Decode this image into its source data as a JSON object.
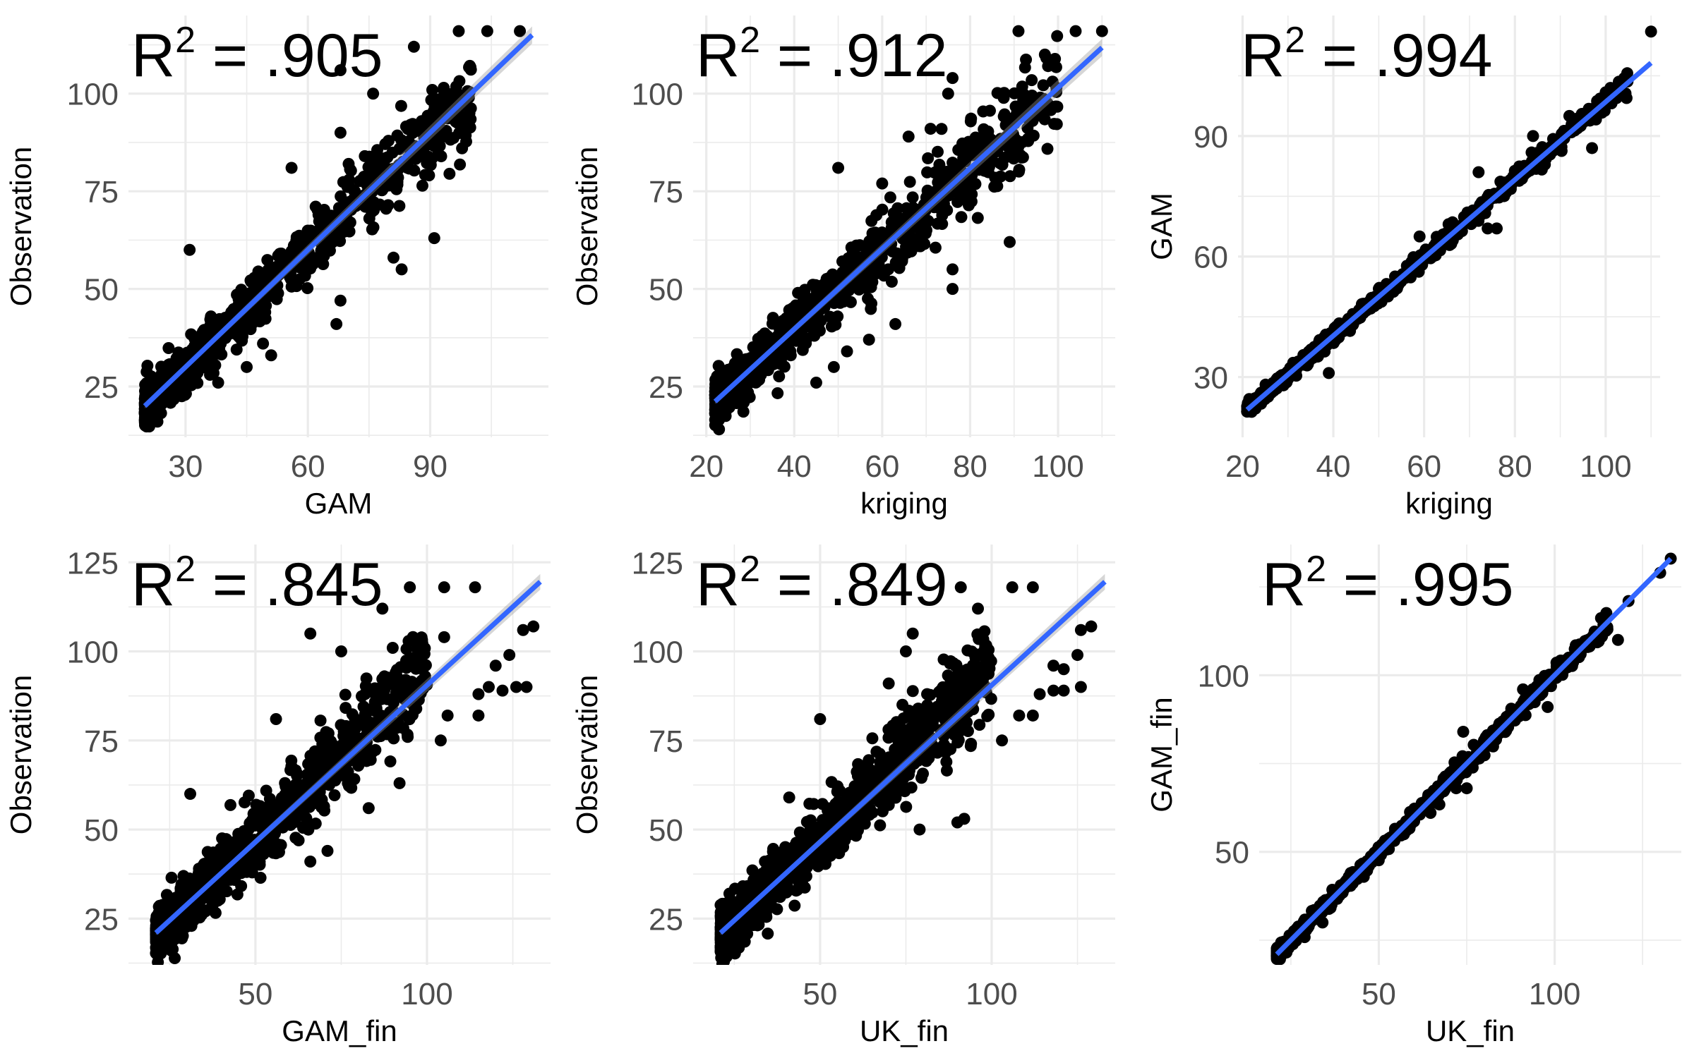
{
  "chart_data": [
    {
      "type": "scatter",
      "panel": "top-left",
      "annotation": {
        "prefix": "R",
        "sup": "2",
        "value": " = .905"
      },
      "xlabel": "GAM",
      "ylabel": "Observation",
      "xlim": [
        16,
        119
      ],
      "ylim": [
        12,
        120
      ],
      "xticks": [
        30,
        60,
        90
      ],
      "xtick_labels": [
        "30",
        "60",
        "90"
      ],
      "xminor": [
        45,
        75,
        105
      ],
      "yticks": [
        25,
        50,
        75,
        100
      ],
      "ytick_labels": [
        "25",
        "50",
        "75",
        "100"
      ],
      "yminor": [
        12.5,
        37.5,
        62.5,
        87.5,
        112.5
      ],
      "grid": true,
      "fit": {
        "slope": 1.0,
        "intercept": 0.0,
        "x_range": [
          20,
          115
        ],
        "color": "#3366FF",
        "se_band": true
      },
      "cloud": {
        "n": 900,
        "x_range": [
          20,
          100
        ],
        "slope": 1.0,
        "intercept": 0.0,
        "noise": 4.5,
        "seed": 11
      },
      "outliers": [
        [
          97,
          116
        ],
        [
          104,
          116
        ],
        [
          112,
          116
        ],
        [
          86,
          112
        ],
        [
          68,
          106
        ],
        [
          76,
          100
        ],
        [
          56,
          81
        ],
        [
          68,
          90
        ],
        [
          70,
          82
        ],
        [
          31,
          60
        ],
        [
          91,
          63
        ],
        [
          81,
          58
        ],
        [
          83,
          55
        ],
        [
          68,
          47
        ],
        [
          67,
          41
        ],
        [
          49,
          36
        ],
        [
          51,
          33
        ],
        [
          45,
          30
        ],
        [
          36,
          28
        ],
        [
          38,
          26
        ]
      ]
    },
    {
      "type": "scatter",
      "panel": "top-middle",
      "annotation": {
        "prefix": "R",
        "sup": "2",
        "value": " = .912"
      },
      "xlabel": "kriging",
      "ylabel": "Observation",
      "xlim": [
        17,
        113
      ],
      "ylim": [
        12,
        120
      ],
      "xticks": [
        20,
        40,
        60,
        80,
        100
      ],
      "xtick_labels": [
        "20",
        "40",
        "60",
        "80",
        "100"
      ],
      "xminor": [
        30,
        50,
        70,
        90,
        110
      ],
      "yticks": [
        25,
        50,
        75,
        100
      ],
      "ytick_labels": [
        "25",
        "50",
        "75",
        "100"
      ],
      "yminor": [
        12.5,
        37.5,
        62.5,
        87.5,
        112.5
      ],
      "grid": true,
      "fit": {
        "slope": 1.03,
        "intercept": -1.5,
        "x_range": [
          22,
          110
        ],
        "color": "#3366FF",
        "se_band": true
      },
      "cloud": {
        "n": 900,
        "x_range": [
          22,
          100
        ],
        "slope": 1.03,
        "intercept": -1.5,
        "noise": 4.8,
        "seed": 23
      },
      "outliers": [
        [
          91,
          116
        ],
        [
          104,
          116
        ],
        [
          110,
          116
        ],
        [
          97,
          110
        ],
        [
          76,
          104
        ],
        [
          75,
          100
        ],
        [
          66,
          89
        ],
        [
          71,
          91
        ],
        [
          50,
          81
        ],
        [
          60,
          77
        ],
        [
          89,
          62
        ],
        [
          76,
          55
        ],
        [
          76,
          50
        ],
        [
          63,
          41
        ],
        [
          57,
          37
        ],
        [
          52,
          34
        ],
        [
          49,
          30
        ],
        [
          45,
          26
        ]
      ]
    },
    {
      "type": "scatter",
      "panel": "top-right",
      "annotation": {
        "prefix": "R",
        "sup": "2",
        "value": " = .994"
      },
      "xlabel": "kriging",
      "ylabel": "GAM",
      "xlim": [
        19,
        112
      ],
      "ylim": [
        15,
        120
      ],
      "xticks": [
        20,
        40,
        60,
        80,
        100
      ],
      "xtick_labels": [
        "20",
        "40",
        "60",
        "80",
        "100"
      ],
      "xminor": [
        30,
        50,
        70,
        90,
        110
      ],
      "yticks": [
        30,
        60,
        90
      ],
      "ytick_labels": [
        "30",
        "60",
        "90"
      ],
      "yminor": [
        45,
        75,
        105
      ],
      "grid": true,
      "fit": {
        "slope": 0.97,
        "intercept": 1.5,
        "x_range": [
          21,
          110
        ],
        "color": "#3366FF",
        "se_band": false
      },
      "cloud": {
        "n": 700,
        "x_range": [
          21,
          105
        ],
        "slope": 0.97,
        "intercept": 1.5,
        "noise": 1.2,
        "seed": 37
      },
      "outliers": [
        [
          110,
          116
        ],
        [
          97,
          87
        ],
        [
          76,
          67
        ],
        [
          74,
          67
        ],
        [
          59,
          65
        ],
        [
          72,
          81
        ],
        [
          39,
          31
        ],
        [
          84,
          90
        ],
        [
          92,
          95
        ]
      ]
    },
    {
      "type": "scatter",
      "panel": "bottom-left",
      "annotation": {
        "prefix": "R",
        "sup": "2",
        "value": " = .845"
      },
      "xlabel": "GAM_fin",
      "ylabel": "Observation",
      "xlim": [
        13,
        136
      ],
      "ylim": [
        12,
        130
      ],
      "xticks": [
        50,
        100
      ],
      "xtick_labels": [
        "50",
        "100"
      ],
      "xminor": [
        25,
        75,
        125
      ],
      "yticks": [
        25,
        50,
        75,
        100,
        125
      ],
      "ytick_labels": [
        "25",
        "50",
        "75",
        "100",
        "125"
      ],
      "yminor": [
        12.5,
        37.5,
        62.5,
        87.5,
        112.5
      ],
      "grid": true,
      "fit": {
        "slope": 0.88,
        "intercept": 2.5,
        "x_range": [
          21,
          133
        ],
        "color": "#3366FF",
        "se_band": true
      },
      "cloud": {
        "n": 1000,
        "x_range": [
          21,
          100
        ],
        "slope": 0.95,
        "intercept": 0.0,
        "noise": 5.5,
        "seed": 51
      },
      "outliers": [
        [
          95,
          118
        ],
        [
          105,
          118
        ],
        [
          114,
          118
        ],
        [
          87,
          112
        ],
        [
          66,
          105
        ],
        [
          75,
          100
        ],
        [
          90,
          101
        ],
        [
          105,
          104
        ],
        [
          128,
          106
        ],
        [
          131,
          107
        ],
        [
          124,
          99
        ],
        [
          120,
          96
        ],
        [
          118,
          90
        ],
        [
          115,
          88
        ],
        [
          122,
          89
        ],
        [
          126,
          90
        ],
        [
          129,
          90
        ],
        [
          104,
          75
        ],
        [
          106,
          82
        ],
        [
          115,
          82
        ],
        [
          31,
          60
        ],
        [
          56,
          81
        ],
        [
          83,
          56
        ],
        [
          92,
          63
        ],
        [
          71,
          44
        ],
        [
          66,
          41
        ]
      ]
    },
    {
      "type": "scatter",
      "panel": "bottom-middle",
      "annotation": {
        "prefix": "R",
        "sup": "2",
        "value": " = .849"
      },
      "xlabel": "UK_fin",
      "ylabel": "Observation",
      "xlim": [
        13,
        136
      ],
      "ylim": [
        12,
        130
      ],
      "xticks": [
        50,
        100
      ],
      "xtick_labels": [
        "50",
        "100"
      ],
      "xminor": [
        25,
        75,
        125
      ],
      "yticks": [
        25,
        50,
        75,
        100,
        125
      ],
      "ytick_labels": [
        "25",
        "50",
        "75",
        "100",
        "125"
      ],
      "yminor": [
        12.5,
        37.5,
        62.5,
        87.5,
        112.5
      ],
      "grid": true,
      "fit": {
        "slope": 0.88,
        "intercept": 2.5,
        "x_range": [
          21,
          133
        ],
        "color": "#3366FF",
        "se_band": true
      },
      "cloud": {
        "n": 1000,
        "x_range": [
          21,
          100
        ],
        "slope": 0.95,
        "intercept": 0.0,
        "noise": 5.5,
        "seed": 67
      },
      "outliers": [
        [
          91,
          118
        ],
        [
          106,
          118
        ],
        [
          112,
          118
        ],
        [
          96,
          112
        ],
        [
          77,
          105
        ],
        [
          75,
          100
        ],
        [
          70,
          91
        ],
        [
          74,
          85
        ],
        [
          50,
          81
        ],
        [
          126,
          106
        ],
        [
          129,
          107
        ],
        [
          125,
          99
        ],
        [
          118,
          96
        ],
        [
          121,
          95
        ],
        [
          126,
          90
        ],
        [
          118,
          89
        ],
        [
          121,
          89
        ],
        [
          114,
          88
        ],
        [
          112,
          82
        ],
        [
          108,
          82
        ],
        [
          103,
          75
        ],
        [
          90,
          52
        ],
        [
          92,
          53
        ],
        [
          79,
          50
        ],
        [
          41,
          59
        ]
      ]
    },
    {
      "type": "scatter",
      "panel": "bottom-right",
      "annotation": {
        "prefix": "R",
        "sup": "2",
        "value": " = .995"
      },
      "xlabel": "UK_fin",
      "ylabel": "GAM_fin",
      "xlim": [
        16,
        136
      ],
      "ylim": [
        18,
        137
      ],
      "xticks": [
        50,
        100
      ],
      "xtick_labels": [
        "50",
        "100"
      ],
      "xminor": [
        25,
        75,
        125
      ],
      "yticks": [
        50,
        100
      ],
      "ytick_labels": [
        "50",
        "100"
      ],
      "yminor": [
        25,
        75,
        125
      ],
      "grid": true,
      "fit": {
        "slope": 1.0,
        "intercept": 0.0,
        "x_range": [
          21,
          133
        ],
        "color": "#3366FF",
        "se_band": false
      },
      "cloud": {
        "n": 700,
        "x_range": [
          21,
          115
        ],
        "slope": 1.0,
        "intercept": 0.0,
        "noise": 1.4,
        "seed": 83
      },
      "outliers": [
        [
          133,
          133
        ],
        [
          130,
          129
        ],
        [
          121,
          121
        ],
        [
          115,
          113
        ],
        [
          118,
          110
        ],
        [
          98,
          91
        ],
        [
          91,
          96
        ],
        [
          74,
          84
        ],
        [
          72,
          68
        ],
        [
          75,
          68
        ],
        [
          39,
          39
        ],
        [
          42,
          44
        ],
        [
          34,
          30
        ]
      ]
    }
  ]
}
